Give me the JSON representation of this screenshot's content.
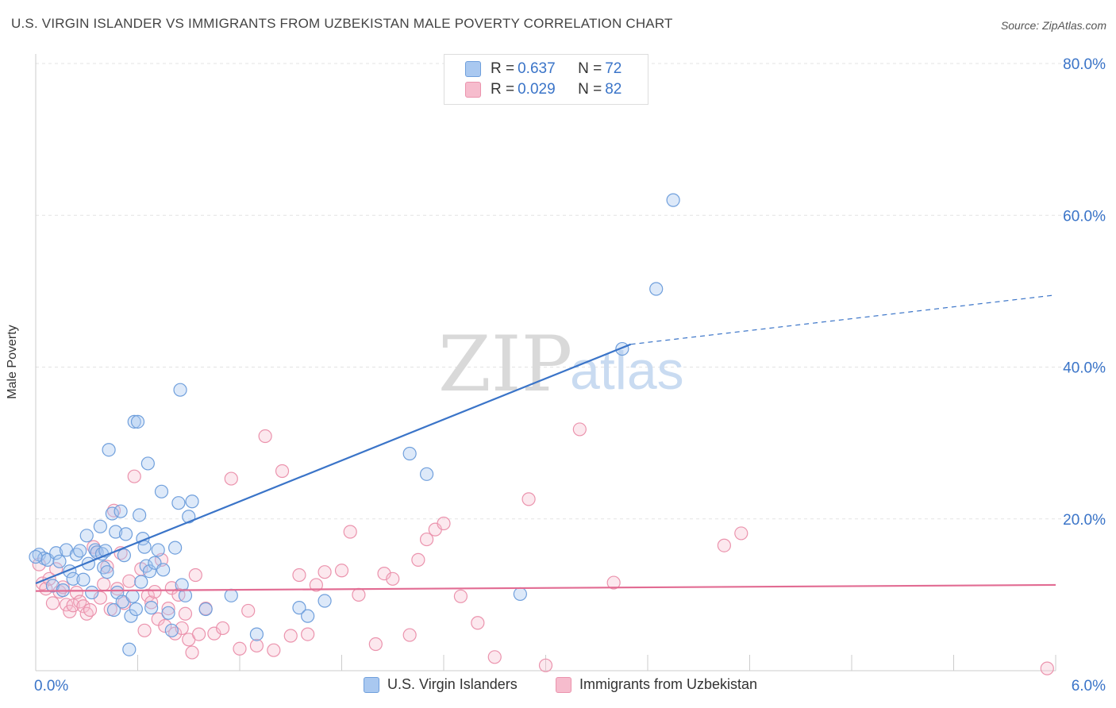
{
  "header": {
    "title": "U.S. VIRGIN ISLANDER VS IMMIGRANTS FROM UZBEKISTAN MALE POVERTY CORRELATION CHART",
    "source": "Source: ZipAtlas.com"
  },
  "watermark": {
    "zip": "ZIP",
    "atlas": "atlas"
  },
  "legend": {
    "rows": [
      {
        "r_label": "R = ",
        "r_value": "0.637",
        "n_label": "N = ",
        "n_value": "72",
        "color": "#a9c8f0"
      },
      {
        "r_label": "R = ",
        "r_value": "0.029",
        "n_label": "N = ",
        "n_value": "82",
        "color": "#f6bccd"
      }
    ]
  },
  "bottom_legend": {
    "items": [
      {
        "label": "U.S. Virgin Islanders",
        "color": "#a9c8f0"
      },
      {
        "label": "Immigrants from Uzbekistan",
        "color": "#f6bccd"
      }
    ]
  },
  "chart_data": {
    "type": "scatter",
    "title": "U.S. VIRGIN ISLANDER VS IMMIGRANTS FROM UZBEKISTAN MALE POVERTY CORRELATION CHART",
    "xlabel": "",
    "ylabel": "Male Poverty",
    "x_tick_labels": [
      "0.0%",
      "6.0%"
    ],
    "y_tick_labels": [
      "20.0%",
      "40.0%",
      "60.0%",
      "80.0%"
    ],
    "xlim": [
      0,
      6
    ],
    "ylim": [
      0,
      80
    ],
    "y_ticks": [
      20,
      40,
      60,
      80
    ],
    "grid": true,
    "legend_position": "top-center",
    "colors": {
      "blue": "#3a74c8",
      "pink": "#e26c93",
      "blue_fill": "#a9c8f0",
      "pink_fill": "#f6bccd",
      "tick_text": "#3a74c8"
    },
    "series": [
      {
        "name": "U.S. Virgin Islanders",
        "r": 0.637,
        "n": 72,
        "trend": {
          "x0": 0.0,
          "y0": 11.5,
          "x1": 3.5,
          "y1": 43.0,
          "dash_x1": 6.0,
          "dash_y1": 49.5
        },
        "points": [
          [
            0.02,
            15.3
          ],
          [
            0.05,
            14.8
          ],
          [
            0.07,
            14.6
          ],
          [
            0.1,
            11.2
          ],
          [
            0.12,
            15.5
          ],
          [
            0.14,
            14.4
          ],
          [
            0.16,
            10.6
          ],
          [
            0.18,
            15.9
          ],
          [
            0.2,
            13.1
          ],
          [
            0.22,
            12.1
          ],
          [
            0.24,
            15.3
          ],
          [
            0.26,
            15.8
          ],
          [
            0.28,
            12.0
          ],
          [
            0.3,
            17.8
          ],
          [
            0.31,
            14.1
          ],
          [
            0.33,
            10.3
          ],
          [
            0.35,
            15.9
          ],
          [
            0.36,
            15.6
          ],
          [
            0.38,
            19.0
          ],
          [
            0.39,
            15.4
          ],
          [
            0.4,
            13.6
          ],
          [
            0.41,
            15.8
          ],
          [
            0.42,
            13.0
          ],
          [
            0.43,
            29.1
          ],
          [
            0.45,
            20.7
          ],
          [
            0.46,
            8.0
          ],
          [
            0.47,
            18.3
          ],
          [
            0.48,
            10.3
          ],
          [
            0.5,
            21.0
          ],
          [
            0.51,
            9.1
          ],
          [
            0.52,
            15.2
          ],
          [
            0.53,
            18.0
          ],
          [
            0.55,
            2.8
          ],
          [
            0.56,
            7.2
          ],
          [
            0.57,
            9.8
          ],
          [
            0.58,
            32.8
          ],
          [
            0.59,
            8.1
          ],
          [
            0.6,
            32.8
          ],
          [
            0.61,
            20.5
          ],
          [
            0.62,
            11.7
          ],
          [
            0.63,
            17.4
          ],
          [
            0.64,
            16.3
          ],
          [
            0.65,
            13.8
          ],
          [
            0.66,
            27.3
          ],
          [
            0.67,
            13.1
          ],
          [
            0.68,
            8.3
          ],
          [
            0.7,
            14.2
          ],
          [
            0.72,
            15.9
          ],
          [
            0.74,
            23.6
          ],
          [
            0.75,
            13.3
          ],
          [
            0.78,
            7.6
          ],
          [
            0.8,
            5.3
          ],
          [
            0.82,
            16.2
          ],
          [
            0.84,
            22.1
          ],
          [
            0.85,
            37.0
          ],
          [
            0.86,
            11.3
          ],
          [
            0.88,
            9.9
          ],
          [
            0.9,
            20.3
          ],
          [
            0.92,
            22.3
          ],
          [
            1.0,
            8.1
          ],
          [
            1.15,
            9.9
          ],
          [
            1.3,
            4.8
          ],
          [
            1.55,
            8.3
          ],
          [
            1.6,
            7.2
          ],
          [
            1.7,
            9.2
          ],
          [
            2.2,
            28.6
          ],
          [
            2.3,
            25.9
          ],
          [
            2.85,
            10.1
          ],
          [
            3.45,
            42.4
          ],
          [
            3.65,
            50.3
          ],
          [
            3.75,
            62.0
          ],
          [
            0.0,
            15.0
          ]
        ]
      },
      {
        "name": "Immigrants from Uzbekistan",
        "r": 0.029,
        "n": 82,
        "trend": {
          "x0": 0.0,
          "y0": 10.5,
          "x1": 6.0,
          "y1": 11.3
        },
        "points": [
          [
            0.02,
            14.0
          ],
          [
            0.04,
            11.5
          ],
          [
            0.06,
            10.8
          ],
          [
            0.08,
            12.1
          ],
          [
            0.1,
            8.9
          ],
          [
            0.12,
            13.4
          ],
          [
            0.14,
            10.4
          ],
          [
            0.16,
            11.0
          ],
          [
            0.18,
            8.7
          ],
          [
            0.2,
            7.8
          ],
          [
            0.22,
            8.6
          ],
          [
            0.24,
            10.3
          ],
          [
            0.26,
            9.1
          ],
          [
            0.28,
            8.5
          ],
          [
            0.3,
            7.5
          ],
          [
            0.32,
            8.0
          ],
          [
            0.34,
            16.3
          ],
          [
            0.36,
            15.6
          ],
          [
            0.38,
            9.6
          ],
          [
            0.4,
            11.4
          ],
          [
            0.42,
            13.7
          ],
          [
            0.44,
            8.1
          ],
          [
            0.46,
            21.1
          ],
          [
            0.48,
            10.8
          ],
          [
            0.5,
            15.5
          ],
          [
            0.52,
            8.9
          ],
          [
            0.55,
            11.8
          ],
          [
            0.58,
            25.6
          ],
          [
            0.62,
            13.4
          ],
          [
            0.64,
            5.3
          ],
          [
            0.66,
            9.9
          ],
          [
            0.68,
            9.0
          ],
          [
            0.7,
            10.4
          ],
          [
            0.72,
            6.8
          ],
          [
            0.74,
            14.6
          ],
          [
            0.76,
            5.9
          ],
          [
            0.78,
            8.2
          ],
          [
            0.8,
            10.9
          ],
          [
            0.82,
            4.9
          ],
          [
            0.84,
            10.0
          ],
          [
            0.86,
            5.6
          ],
          [
            0.88,
            7.5
          ],
          [
            0.9,
            4.1
          ],
          [
            0.92,
            2.4
          ],
          [
            0.94,
            12.6
          ],
          [
            0.96,
            4.8
          ],
          [
            1.0,
            8.2
          ],
          [
            1.05,
            4.9
          ],
          [
            1.1,
            5.6
          ],
          [
            1.15,
            25.3
          ],
          [
            1.2,
            2.9
          ],
          [
            1.25,
            7.9
          ],
          [
            1.3,
            3.3
          ],
          [
            1.35,
            30.9
          ],
          [
            1.4,
            2.7
          ],
          [
            1.45,
            26.3
          ],
          [
            1.5,
            4.6
          ],
          [
            1.55,
            12.6
          ],
          [
            1.6,
            4.8
          ],
          [
            1.65,
            11.3
          ],
          [
            1.7,
            13.0
          ],
          [
            1.8,
            13.2
          ],
          [
            1.85,
            18.3
          ],
          [
            1.9,
            10.0
          ],
          [
            2.0,
            3.5
          ],
          [
            2.05,
            12.8
          ],
          [
            2.1,
            12.1
          ],
          [
            2.2,
            4.7
          ],
          [
            2.25,
            14.6
          ],
          [
            2.3,
            17.3
          ],
          [
            2.35,
            18.6
          ],
          [
            2.4,
            19.4
          ],
          [
            2.5,
            9.8
          ],
          [
            2.6,
            6.3
          ],
          [
            2.7,
            1.8
          ],
          [
            2.9,
            22.6
          ],
          [
            3.0,
            0.7
          ],
          [
            3.2,
            31.8
          ],
          [
            3.4,
            11.6
          ],
          [
            4.05,
            16.5
          ],
          [
            4.15,
            18.1
          ],
          [
            5.95,
            0.3
          ]
        ]
      }
    ]
  }
}
